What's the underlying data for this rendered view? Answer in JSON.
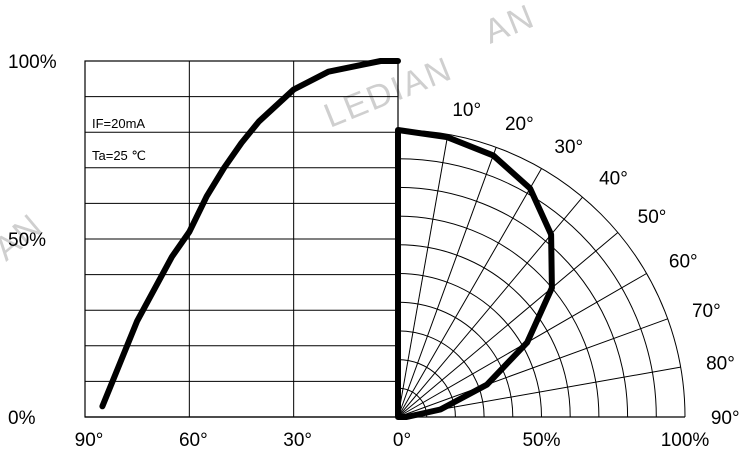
{
  "watermark": {
    "left": "AN",
    "center": "LEDIAN",
    "top": "AN"
  },
  "chart_data": {
    "type": "line",
    "title": "",
    "conditions": [
      "IF=20mA",
      "Ta=25 ℃"
    ],
    "left_panel": {
      "description": "relative intensity vs angle",
      "x_ticks": [
        "90°",
        "60°",
        "30°",
        "0°"
      ],
      "x_tick_values": [
        90,
        60,
        30,
        0
      ],
      "y_ticks": [
        "0%",
        "50%",
        "100%"
      ],
      "y_tick_values": [
        0,
        50,
        100
      ],
      "xlim": [
        90,
        0
      ],
      "ylim": [
        0,
        100
      ],
      "series": [
        {
          "x": [
            85,
            75,
            65,
            60,
            55,
            50,
            45,
            40,
            30,
            20,
            10,
            5,
            0
          ],
          "y": [
            3,
            27,
            45,
            52,
            62,
            70,
            77,
            83,
            92,
            97,
            99,
            100,
            100
          ]
        }
      ]
    },
    "right_panel": {
      "type": "polar",
      "radial_ticks": [
        "50%",
        "100%"
      ],
      "radial_tick_values": [
        50,
        100
      ],
      "angle_labels": [
        "10°",
        "20°",
        "30°",
        "40°",
        "50°",
        "60°",
        "70°",
        "80°",
        "90°"
      ],
      "angle_values": [
        10,
        20,
        30,
        40,
        50,
        60,
        70,
        80,
        90
      ],
      "origin_label": "0°",
      "series": [
        {
          "angle": [
            0,
            10,
            20,
            30,
            40,
            50,
            60,
            70,
            80,
            90
          ],
          "r": [
            100,
            99,
            97,
            92,
            83,
            70,
            52,
            33,
            15,
            3
          ]
        }
      ]
    }
  }
}
